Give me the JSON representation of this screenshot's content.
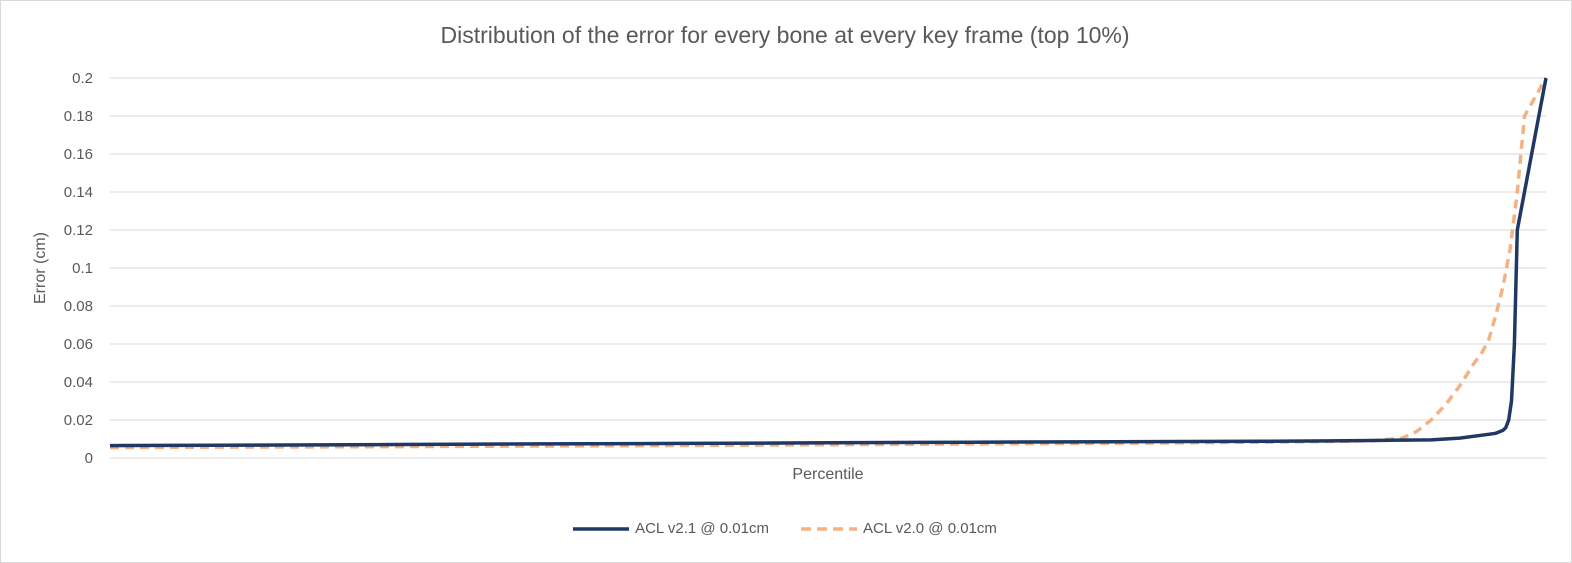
{
  "chart_data": {
    "type": "line",
    "title": "Distribution of the error for every bone at every key frame (top 10%)",
    "xlabel": "Percentile",
    "ylabel": "Error (cm)",
    "xlim": [
      90,
      100
    ],
    "ylim": [
      0,
      0.2
    ],
    "yticks": [
      "0.2",
      "0.18",
      "0.16",
      "0.14",
      "0.12",
      "0.1",
      "0.08",
      "0.06",
      "0.04",
      "0.02",
      "0"
    ],
    "grid": true,
    "legend_position": "bottom",
    "series": [
      {
        "name": "ACL v2.1 @ 0.01cm",
        "color": "#1f3864",
        "style": "solid",
        "x": [
          90,
          91,
          92,
          93,
          94,
          95,
          96,
          97,
          98,
          98.5,
          98.8,
          99.0,
          99.2,
          99.4,
          99.6,
          99.65,
          99.7,
          99.72,
          99.74,
          99.76,
          99.78,
          99.8,
          100
        ],
        "y": [
          0.0065,
          0.0068,
          0.0071,
          0.0074,
          0.0077,
          0.008,
          0.0083,
          0.0086,
          0.0088,
          0.009,
          0.0092,
          0.0094,
          0.0095,
          0.0105,
          0.0125,
          0.013,
          0.0145,
          0.016,
          0.02,
          0.03,
          0.06,
          0.12,
          0.2
        ]
      },
      {
        "name": "ACL v2.0 @ 0.01cm",
        "color": "#f4b183",
        "style": "dashed",
        "x": [
          90,
          91,
          92,
          93,
          94,
          95,
          96,
          97,
          98,
          98.6,
          98.8,
          99.0,
          99.1,
          99.2,
          99.3,
          99.4,
          99.5,
          99.55,
          99.6,
          99.65,
          99.7,
          99.75,
          99.8,
          99.85,
          100
        ],
        "y": [
          0.0055,
          0.0058,
          0.006,
          0.0063,
          0.0066,
          0.007,
          0.0074,
          0.0078,
          0.0083,
          0.0088,
          0.0092,
          0.0105,
          0.014,
          0.02,
          0.028,
          0.038,
          0.05,
          0.055,
          0.062,
          0.075,
          0.09,
          0.11,
          0.14,
          0.18,
          0.2
        ]
      }
    ]
  }
}
